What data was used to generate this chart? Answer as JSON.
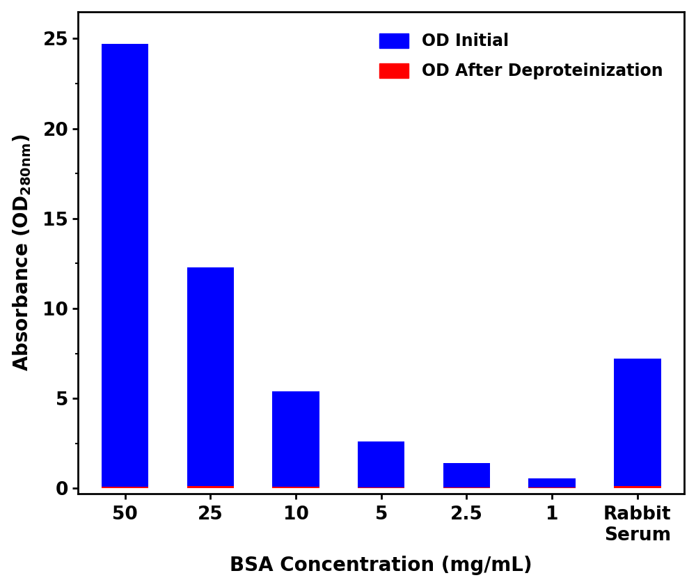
{
  "categories": [
    "50",
    "25",
    "10",
    "5",
    "2.5",
    "1",
    "Rabbit\nSerum"
  ],
  "od_initial": [
    24.7,
    12.3,
    5.4,
    2.6,
    1.4,
    0.55,
    7.2
  ],
  "od_after": [
    0.07,
    0.12,
    0.08,
    0.06,
    0.06,
    0.05,
    0.12
  ],
  "bar_color_initial": "#0000FF",
  "bar_color_after": "#FF0000",
  "xlabel": "BSA Concentration (mg/mL)",
  "ylim": [
    -0.3,
    26.5
  ],
  "yticks": [
    0,
    5,
    10,
    15,
    20,
    25
  ],
  "legend_initial": "OD Initial",
  "legend_after": "OD After Deproteinization",
  "bar_width": 0.55,
  "red_bar_width": 0.55,
  "figsize": [
    10.0,
    8.43
  ],
  "dpi": 100,
  "xlabel_fontsize": 20,
  "ylabel_fontsize": 20,
  "tick_fontsize": 19,
  "legend_fontsize": 17,
  "background_color": "#ffffff",
  "spine_linewidth": 2.0
}
